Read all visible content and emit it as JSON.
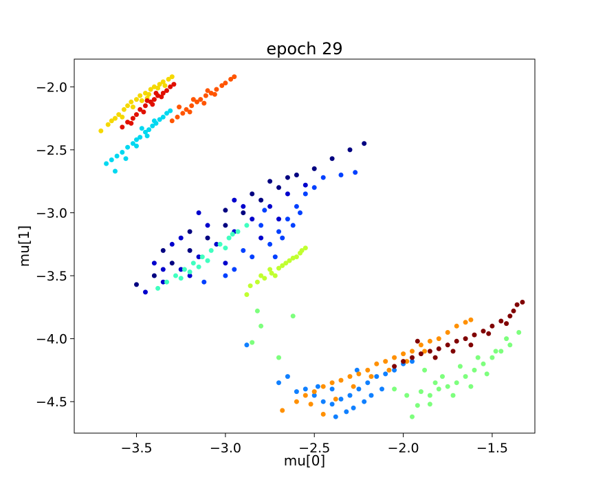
{
  "chart_data": {
    "type": "scatter",
    "title": "epoch 29",
    "xlabel": "mu[0]",
    "ylabel": "mu[1]",
    "xlim": [
      -3.85,
      -1.26
    ],
    "ylim": [
      -4.75,
      -1.78
    ],
    "xticks": [
      -3.5,
      -3.0,
      -2.5,
      -2.0,
      -1.5
    ],
    "xtick_labels": [
      "−3.5",
      "−3.0",
      "−2.5",
      "−2.0",
      "−1.5"
    ],
    "yticks": [
      -2.0,
      -2.5,
      -3.0,
      -3.5,
      -4.0,
      -4.5
    ],
    "ytick_labels": [
      "−2.0",
      "−2.5",
      "−3.0",
      "−3.5",
      "−4.0",
      "−4.5"
    ],
    "grid": false,
    "legend": "none",
    "series": [
      {
        "color": "#f5d800",
        "points": [
          [
            -3.7,
            -2.35
          ],
          [
            -3.66,
            -2.3
          ],
          [
            -3.62,
            -2.25
          ],
          [
            -3.6,
            -2.22
          ],
          [
            -3.57,
            -2.18
          ],
          [
            -3.55,
            -2.15
          ],
          [
            -3.53,
            -2.12
          ],
          [
            -3.5,
            -2.1
          ],
          [
            -3.48,
            -2.07
          ],
          [
            -3.45,
            -2.05
          ],
          [
            -3.42,
            -2.02
          ],
          [
            -3.4,
            -2.0
          ],
          [
            -3.37,
            -1.98
          ],
          [
            -3.35,
            -1.96
          ],
          [
            -3.32,
            -1.94
          ],
          [
            -3.3,
            -1.92
          ],
          [
            -3.52,
            -2.16
          ],
          [
            -3.47,
            -2.11
          ],
          [
            -3.43,
            -2.06
          ],
          [
            -3.38,
            -2.01
          ],
          [
            -3.58,
            -2.24
          ],
          [
            -3.44,
            -2.09
          ],
          [
            -3.34,
            -1.99
          ],
          [
            -3.64,
            -2.27
          ]
        ]
      },
      {
        "color": "#e01000",
        "points": [
          [
            -3.58,
            -2.32
          ],
          [
            -3.55,
            -2.28
          ],
          [
            -3.52,
            -2.25
          ],
          [
            -3.5,
            -2.22
          ],
          [
            -3.48,
            -2.18
          ],
          [
            -3.45,
            -2.15
          ],
          [
            -3.42,
            -2.12
          ],
          [
            -3.4,
            -2.1
          ],
          [
            -3.38,
            -2.07
          ],
          [
            -3.35,
            -2.05
          ],
          [
            -3.33,
            -2.03
          ],
          [
            -3.31,
            -2.0
          ],
          [
            -3.29,
            -1.98
          ],
          [
            -3.46,
            -2.2
          ],
          [
            -3.41,
            -2.14
          ],
          [
            -3.36,
            -2.08
          ],
          [
            -3.53,
            -2.29
          ],
          [
            -3.44,
            -2.11
          ],
          [
            -3.39,
            -2.05
          ]
        ]
      },
      {
        "color": "#ff5500",
        "points": [
          [
            -3.3,
            -2.27
          ],
          [
            -3.27,
            -2.24
          ],
          [
            -3.24,
            -2.21
          ],
          [
            -3.22,
            -2.18
          ],
          [
            -3.19,
            -2.15
          ],
          [
            -3.16,
            -2.12
          ],
          [
            -3.14,
            -2.1
          ],
          [
            -3.11,
            -2.07
          ],
          [
            -3.08,
            -2.05
          ],
          [
            -3.05,
            -2.02
          ],
          [
            -3.02,
            -1.99
          ],
          [
            -3.0,
            -1.97
          ],
          [
            -2.97,
            -1.94
          ],
          [
            -2.95,
            -1.92
          ],
          [
            -3.2,
            -2.2
          ],
          [
            -3.12,
            -2.13
          ],
          [
            -3.06,
            -2.06
          ],
          [
            -3.26,
            -2.16
          ],
          [
            -3.1,
            -2.03
          ],
          [
            -3.18,
            -2.1
          ]
        ]
      },
      {
        "color": "#00d8f0",
        "points": [
          [
            -3.67,
            -2.61
          ],
          [
            -3.64,
            -2.58
          ],
          [
            -3.61,
            -2.55
          ],
          [
            -3.58,
            -2.52
          ],
          [
            -3.55,
            -2.48
          ],
          [
            -3.52,
            -2.45
          ],
          [
            -3.5,
            -2.42
          ],
          [
            -3.48,
            -2.4
          ],
          [
            -3.45,
            -2.36
          ],
          [
            -3.43,
            -2.34
          ],
          [
            -3.41,
            -2.31
          ],
          [
            -3.39,
            -2.29
          ],
          [
            -3.37,
            -2.26
          ],
          [
            -3.35,
            -2.24
          ],
          [
            -3.33,
            -2.21
          ],
          [
            -3.31,
            -2.19
          ],
          [
            -3.62,
            -2.67
          ],
          [
            -3.5,
            -2.47
          ],
          [
            -3.44,
            -2.39
          ],
          [
            -3.4,
            -2.27
          ],
          [
            -3.47,
            -2.33
          ],
          [
            -3.56,
            -2.57
          ]
        ]
      },
      {
        "color": "#000080",
        "points": [
          [
            -3.5,
            -3.57
          ],
          [
            -3.4,
            -3.5
          ],
          [
            -3.3,
            -3.4
          ],
          [
            -3.2,
            -3.3
          ],
          [
            -3.1,
            -3.2
          ],
          [
            -3.0,
            -3.1
          ],
          [
            -2.9,
            -3.0
          ],
          [
            -2.8,
            -2.9
          ],
          [
            -2.7,
            -2.8
          ],
          [
            -2.6,
            -2.7
          ],
          [
            -2.5,
            -2.65
          ],
          [
            -2.4,
            -2.57
          ],
          [
            -2.3,
            -2.5
          ],
          [
            -2.22,
            -2.45
          ],
          [
            -3.2,
            -3.15
          ],
          [
            -3.0,
            -2.98
          ],
          [
            -2.85,
            -2.85
          ],
          [
            -2.75,
            -2.75
          ],
          [
            -3.35,
            -3.3
          ],
          [
            -2.65,
            -2.72
          ]
        ]
      },
      {
        "color": "#0000cc",
        "points": [
          [
            -3.45,
            -3.63
          ],
          [
            -3.35,
            -3.55
          ],
          [
            -3.25,
            -3.45
          ],
          [
            -3.15,
            -3.35
          ],
          [
            -3.05,
            -3.25
          ],
          [
            -2.95,
            -3.15
          ],
          [
            -2.85,
            -3.05
          ],
          [
            -2.75,
            -2.95
          ],
          [
            -2.65,
            -2.85
          ],
          [
            -2.55,
            -2.78
          ],
          [
            -3.3,
            -3.25
          ],
          [
            -3.1,
            -3.1
          ],
          [
            -2.9,
            -2.95
          ],
          [
            -3.4,
            -3.4
          ],
          [
            -3.2,
            -3.5
          ],
          [
            -3.0,
            -3.4
          ],
          [
            -2.8,
            -3.2
          ],
          [
            -2.7,
            -3.05
          ],
          [
            -3.15,
            -3.0
          ],
          [
            -2.95,
            -2.9
          ],
          [
            -3.25,
            -3.2
          ],
          [
            -3.35,
            -3.45
          ]
        ]
      },
      {
        "color": "#0040ff",
        "points": [
          [
            -2.95,
            -3.45
          ],
          [
            -2.85,
            -3.35
          ],
          [
            -2.75,
            -3.25
          ],
          [
            -2.7,
            -3.15
          ],
          [
            -2.65,
            -3.05
          ],
          [
            -2.6,
            -2.95
          ],
          [
            -2.55,
            -2.85
          ],
          [
            -2.5,
            -2.8
          ],
          [
            -2.45,
            -2.72
          ],
          [
            -2.35,
            -2.7
          ],
          [
            -2.27,
            -2.68
          ],
          [
            -2.8,
            -3.1
          ],
          [
            -2.9,
            -3.3
          ],
          [
            -2.72,
            -3.35
          ],
          [
            -2.68,
            -3.2
          ],
          [
            -2.62,
            -3.1
          ],
          [
            -2.58,
            -3.0
          ],
          [
            -3.0,
            -3.5
          ],
          [
            -3.12,
            -3.55
          ],
          [
            -2.78,
            -2.98
          ]
        ]
      },
      {
        "color": "#40ffc0",
        "points": [
          [
            -3.38,
            -3.6
          ],
          [
            -3.33,
            -3.55
          ],
          [
            -3.28,
            -3.5
          ],
          [
            -3.23,
            -3.45
          ],
          [
            -3.18,
            -3.4
          ],
          [
            -3.13,
            -3.35
          ],
          [
            -3.08,
            -3.3
          ],
          [
            -3.03,
            -3.25
          ],
          [
            -2.98,
            -3.2
          ],
          [
            -2.93,
            -3.15
          ],
          [
            -2.88,
            -3.1
          ],
          [
            -3.2,
            -3.47
          ],
          [
            -3.1,
            -3.38
          ],
          [
            -3.0,
            -3.28
          ],
          [
            -3.25,
            -3.52
          ],
          [
            -2.96,
            -3.17
          ],
          [
            -3.15,
            -3.43
          ]
        ]
      },
      {
        "color": "#c0ff30",
        "points": [
          [
            -2.88,
            -3.65
          ],
          [
            -2.86,
            -3.58
          ],
          [
            -2.82,
            -3.55
          ],
          [
            -2.78,
            -3.52
          ],
          [
            -2.74,
            -3.48
          ],
          [
            -2.7,
            -3.44
          ],
          [
            -2.66,
            -3.4
          ],
          [
            -2.62,
            -3.36
          ],
          [
            -2.58,
            -3.32
          ],
          [
            -2.55,
            -3.28
          ],
          [
            -2.75,
            -3.45
          ],
          [
            -2.68,
            -3.42
          ],
          [
            -2.64,
            -3.38
          ],
          [
            -2.8,
            -3.5
          ],
          [
            -2.72,
            -3.5
          ],
          [
            -2.6,
            -3.35
          ],
          [
            -2.57,
            -3.3
          ]
        ]
      },
      {
        "color": "#7dff7d",
        "points": [
          [
            -2.82,
            -3.78
          ],
          [
            -2.8,
            -3.9
          ],
          [
            -2.62,
            -3.82
          ],
          [
            -2.7,
            -4.15
          ],
          [
            -2.85,
            -4.03
          ],
          [
            -1.95,
            -4.62
          ],
          [
            -1.92,
            -4.53
          ],
          [
            -1.85,
            -4.52
          ],
          [
            -1.85,
            -4.45
          ],
          [
            -1.8,
            -4.4
          ],
          [
            -1.75,
            -4.38
          ],
          [
            -1.7,
            -4.35
          ],
          [
            -1.65,
            -4.3
          ],
          [
            -1.6,
            -4.25
          ],
          [
            -1.55,
            -4.2
          ],
          [
            -1.5,
            -4.15
          ],
          [
            -1.45,
            -4.1
          ],
          [
            -1.4,
            -4.05
          ],
          [
            -1.35,
            -3.95
          ],
          [
            -1.9,
            -4.42
          ],
          [
            -1.78,
            -4.3
          ],
          [
            -1.68,
            -4.22
          ],
          [
            -1.58,
            -4.15
          ],
          [
            -1.48,
            -4.1
          ],
          [
            -1.72,
            -4.45
          ],
          [
            -1.62,
            -4.38
          ],
          [
            -1.82,
            -4.35
          ],
          [
            -1.42,
            -4.0
          ],
          [
            -2.05,
            -4.4
          ],
          [
            -1.98,
            -4.45
          ],
          [
            -1.53,
            -4.28
          ],
          [
            -1.88,
            -4.25
          ]
        ]
      },
      {
        "color": "#1080ff",
        "points": [
          [
            -2.88,
            -4.05
          ],
          [
            -2.7,
            -4.35
          ],
          [
            -2.65,
            -4.3
          ],
          [
            -2.6,
            -4.42
          ],
          [
            -2.55,
            -4.4
          ],
          [
            -2.5,
            -4.45
          ],
          [
            -2.45,
            -4.5
          ],
          [
            -2.4,
            -4.52
          ],
          [
            -2.35,
            -4.48
          ],
          [
            -2.3,
            -4.45
          ],
          [
            -2.25,
            -4.4
          ],
          [
            -2.2,
            -4.35
          ],
          [
            -2.15,
            -4.3
          ],
          [
            -2.1,
            -4.28
          ],
          [
            -2.05,
            -4.25
          ],
          [
            -2.0,
            -4.2
          ],
          [
            -1.95,
            -4.18
          ],
          [
            -2.38,
            -4.62
          ],
          [
            -2.32,
            -4.58
          ],
          [
            -2.28,
            -4.55
          ],
          [
            -2.22,
            -4.5
          ],
          [
            -2.4,
            -4.4
          ],
          [
            -2.18,
            -4.45
          ],
          [
            -2.26,
            -4.25
          ],
          [
            -2.12,
            -4.4
          ],
          [
            -2.48,
            -4.38
          ]
        ]
      },
      {
        "color": "#ff9000",
        "points": [
          [
            -2.68,
            -4.57
          ],
          [
            -2.6,
            -4.5
          ],
          [
            -2.55,
            -4.45
          ],
          [
            -2.5,
            -4.42
          ],
          [
            -2.45,
            -4.38
          ],
          [
            -2.4,
            -4.35
          ],
          [
            -2.35,
            -4.33
          ],
          [
            -2.3,
            -4.3
          ],
          [
            -2.25,
            -4.28
          ],
          [
            -2.2,
            -4.25
          ],
          [
            -2.15,
            -4.2
          ],
          [
            -2.1,
            -4.18
          ],
          [
            -2.05,
            -4.15
          ],
          [
            -2.0,
            -4.12
          ],
          [
            -1.95,
            -4.1
          ],
          [
            -1.9,
            -4.05
          ],
          [
            -1.85,
            -4.02
          ],
          [
            -1.8,
            -4.0
          ],
          [
            -1.75,
            -3.95
          ],
          [
            -1.7,
            -3.9
          ],
          [
            -1.65,
            -3.87
          ],
          [
            -1.62,
            -3.85
          ],
          [
            -2.45,
            -4.6
          ],
          [
            -2.52,
            -4.52
          ],
          [
            -2.38,
            -4.48
          ],
          [
            -2.28,
            -4.38
          ],
          [
            -2.18,
            -4.3
          ],
          [
            -2.08,
            -4.25
          ],
          [
            -1.98,
            -4.18
          ],
          [
            -1.88,
            -4.1
          ]
        ]
      },
      {
        "color": "#800000",
        "points": [
          [
            -2.05,
            -4.22
          ],
          [
            -2.0,
            -4.18
          ],
          [
            -1.95,
            -4.15
          ],
          [
            -1.9,
            -4.12
          ],
          [
            -1.85,
            -4.1
          ],
          [
            -1.8,
            -4.08
          ],
          [
            -1.75,
            -4.05
          ],
          [
            -1.7,
            -4.02
          ],
          [
            -1.65,
            -4.0
          ],
          [
            -1.6,
            -3.97
          ],
          [
            -1.55,
            -3.94
          ],
          [
            -1.5,
            -3.9
          ],
          [
            -1.45,
            -3.86
          ],
          [
            -1.4,
            -3.82
          ],
          [
            -1.38,
            -3.78
          ],
          [
            -1.36,
            -3.73
          ],
          [
            -1.33,
            -3.71
          ],
          [
            -1.92,
            -4.02
          ],
          [
            -1.72,
            -4.1
          ],
          [
            -1.62,
            -4.05
          ],
          [
            -1.52,
            -3.96
          ],
          [
            -1.42,
            -3.88
          ],
          [
            -1.82,
            -4.15
          ]
        ]
      }
    ]
  }
}
